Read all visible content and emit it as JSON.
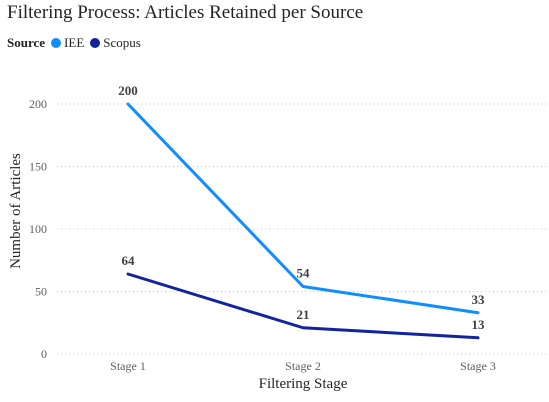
{
  "chart_data": {
    "type": "line",
    "title": "Filtering Process: Articles Retained per Source",
    "legend_title": "Source",
    "legend_position": "top-left",
    "xlabel": "Filtering Stage",
    "ylabel": "Number of Articles",
    "categories": [
      "Stage 1",
      "Stage 2",
      "Stage 3"
    ],
    "ylim": [
      0,
      200
    ],
    "yticks": [
      "0",
      "50",
      "100",
      "150",
      "200"
    ],
    "grid": true,
    "series": [
      {
        "name": "IEE",
        "color": "#118dff",
        "values": [
          200,
          54,
          33
        ]
      },
      {
        "name": "Scopus",
        "color": "#12239e",
        "values": [
          64,
          21,
          13
        ]
      }
    ]
  }
}
